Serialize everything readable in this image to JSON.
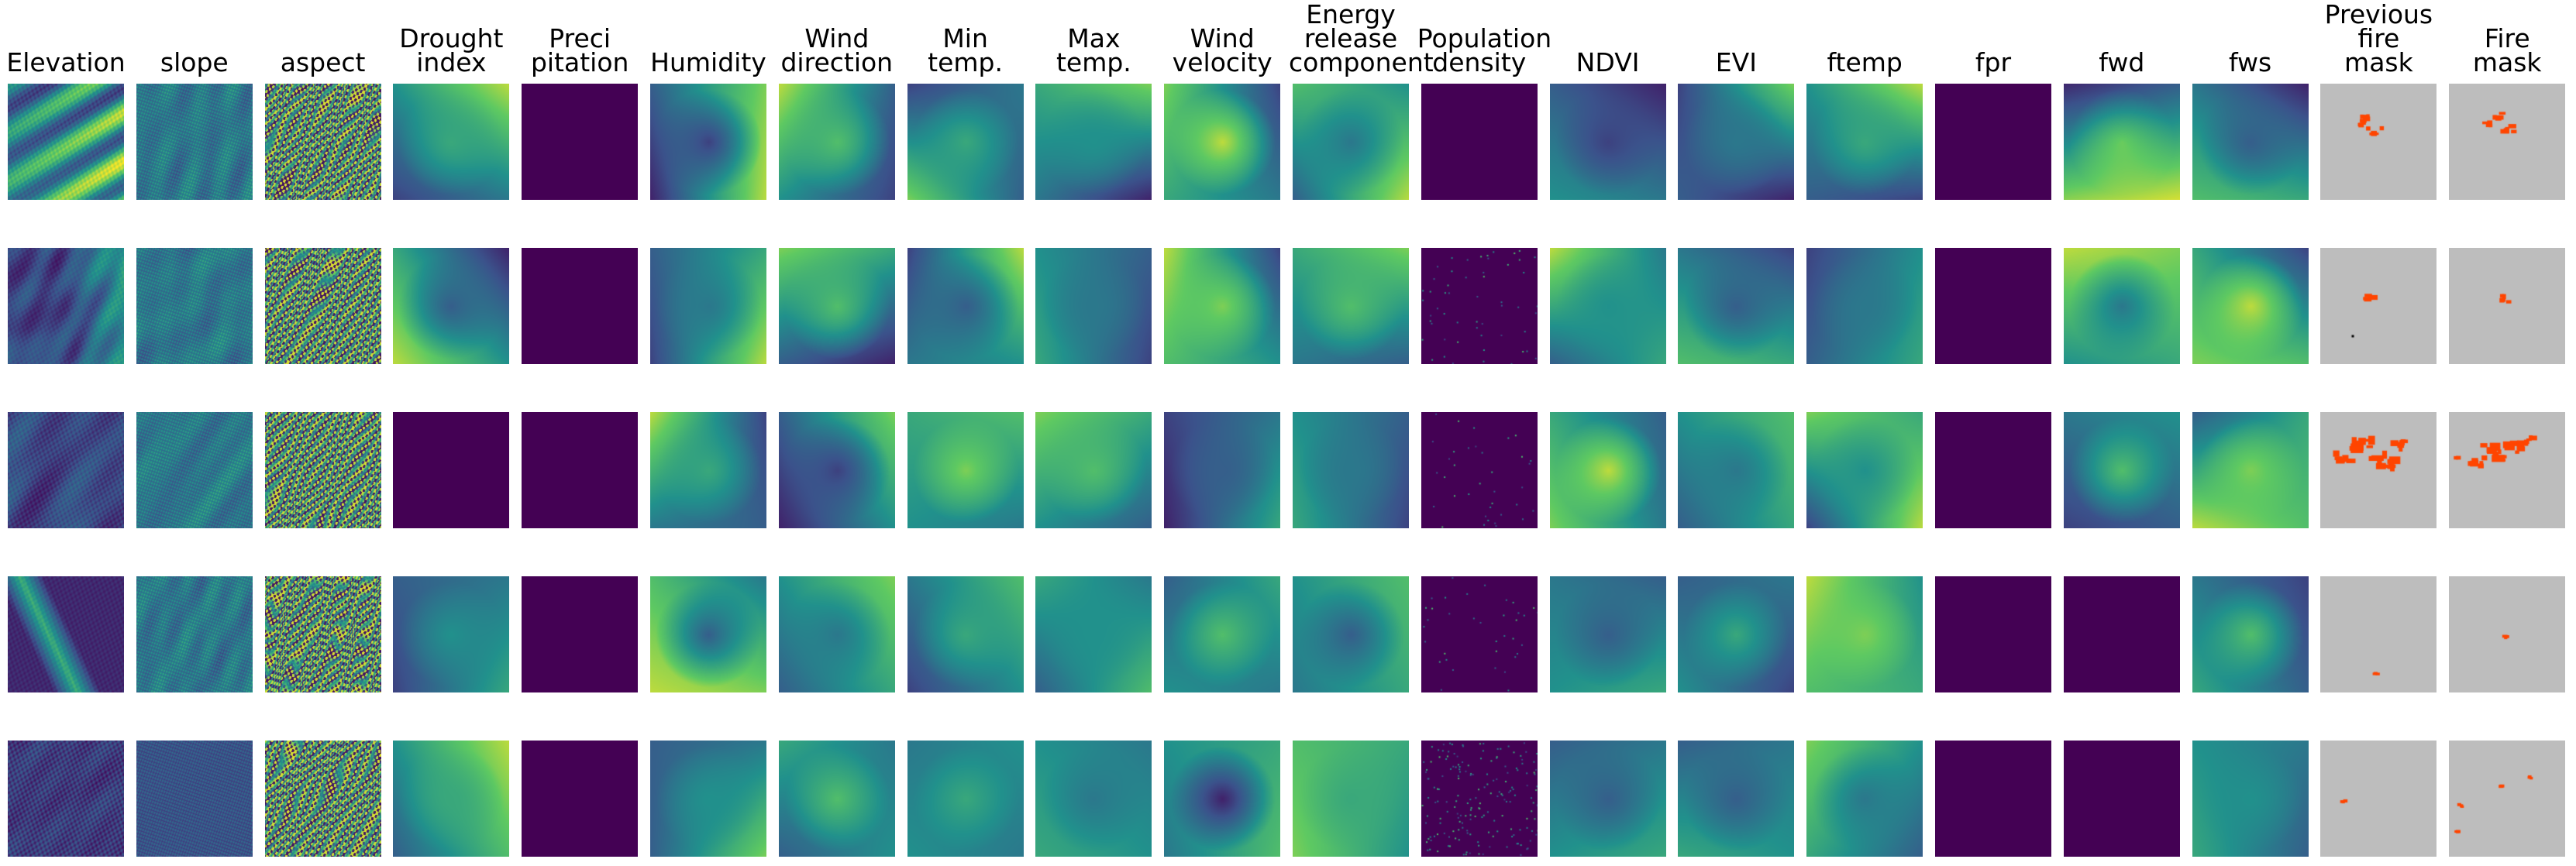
{
  "columns": [
    {
      "key": "elevation",
      "label": [
        "Elevation"
      ]
    },
    {
      "key": "slope",
      "label": [
        "slope"
      ]
    },
    {
      "key": "aspect",
      "label": [
        "aspect"
      ]
    },
    {
      "key": "drought",
      "label": [
        "Drought",
        "index"
      ]
    },
    {
      "key": "precip",
      "label": [
        "Preci",
        "pitation"
      ]
    },
    {
      "key": "humidity",
      "label": [
        "Humidity"
      ]
    },
    {
      "key": "winddir",
      "label": [
        "Wind",
        "direction"
      ]
    },
    {
      "key": "mintemp",
      "label": [
        "Min",
        "temp."
      ]
    },
    {
      "key": "maxtemp",
      "label": [
        "Max",
        "temp."
      ]
    },
    {
      "key": "windvel",
      "label": [
        "Wind",
        "velocity"
      ]
    },
    {
      "key": "erc",
      "label": [
        "Energy",
        "release",
        "component"
      ]
    },
    {
      "key": "popdens",
      "label": [
        "Population",
        "density"
      ]
    },
    {
      "key": "ndvi",
      "label": [
        "NDVI"
      ]
    },
    {
      "key": "evi",
      "label": [
        "EVI"
      ]
    },
    {
      "key": "ftemp",
      "label": [
        "ftemp"
      ]
    },
    {
      "key": "fpr",
      "label": [
        "fpr"
      ]
    },
    {
      "key": "fwd",
      "label": [
        "fwd"
      ]
    },
    {
      "key": "fws",
      "label": [
        "fws"
      ]
    },
    {
      "key": "prevfire",
      "label": [
        "Previous",
        "fire",
        "mask"
      ]
    },
    {
      "key": "firemask",
      "label": [
        "Fire",
        "mask"
      ]
    }
  ],
  "colormap": [
    "#440154",
    "#3b528b",
    "#21918c",
    "#5ec962",
    "#fde725"
  ],
  "mask_colors": {
    "background": "#bdbdbd",
    "fire": "#ff4500",
    "missing": "#000000"
  },
  "rows": [
    {
      "elevation": "ridged-bright",
      "slope": "texture",
      "aspect": "texture-strong",
      "drought": {
        "type": "smooth",
        "v": [
          0.5,
          0.9,
          0.2,
          0.4,
          0.6
        ]
      },
      "precip": {
        "type": "flat",
        "v": 0
      },
      "humidity": {
        "type": "smooth",
        "v": [
          0.3,
          0.8,
          0.1,
          0.9,
          0.2
        ]
      },
      "winddir": {
        "type": "smooth",
        "v": [
          0.9,
          0.3,
          0.5,
          0.2,
          0.7
        ]
      },
      "mintemp": {
        "type": "smooth",
        "v": [
          0.2,
          0.4,
          0.8,
          0.3,
          0.6
        ]
      },
      "maxtemp": {
        "type": "smooth",
        "v": [
          0.6,
          0.8,
          0.4,
          0.1,
          0.5
        ]
      },
      "windvel": {
        "type": "smooth",
        "v": [
          0.8,
          0.2,
          0.6,
          0.4,
          0.9
        ]
      },
      "erc": {
        "type": "smooth",
        "v": [
          0.7,
          0.5,
          0.3,
          0.9,
          0.4
        ]
      },
      "popdens": {
        "type": "flat",
        "v": 0
      },
      "ndvi": {
        "type": "smooth",
        "v": [
          0.3,
          0.1,
          0.5,
          0.4,
          0.2
        ]
      },
      "evi": {
        "type": "smooth",
        "v": [
          0.2,
          0.8,
          0.3,
          0.1,
          0.4
        ]
      },
      "ftemp": {
        "type": "smooth",
        "v": [
          0.5,
          0.9,
          0.3,
          0.2,
          0.6
        ]
      },
      "fpr": {
        "type": "flat",
        "v": 0
      },
      "fwd": {
        "type": "bands",
        "v": [
          0.2,
          0.5,
          0.7,
          0.9,
          0.95
        ]
      },
      "fws": {
        "type": "smooth",
        "v": [
          0.4,
          0.1,
          0.7,
          0.6,
          0.3
        ]
      },
      "prevfire": {
        "type": "mask",
        "fire": [
          [
            0.4,
            0.3,
            0.06
          ],
          [
            0.47,
            0.42,
            0.08
          ],
          [
            0.36,
            0.34,
            0.05
          ]
        ],
        "missing": []
      },
      "firemask": {
        "type": "mask",
        "fire": [
          [
            0.42,
            0.28,
            0.06
          ],
          [
            0.52,
            0.4,
            0.07
          ],
          [
            0.34,
            0.36,
            0.05
          ]
        ],
        "missing": []
      }
    },
    {
      "elevation": "dark-bright-corner",
      "slope": "texture",
      "aspect": "texture-strong",
      "drought": {
        "type": "smooth",
        "v": [
          0.6,
          0.1,
          0.9,
          0.5,
          0.3
        ]
      },
      "precip": {
        "type": "flat",
        "v": 0
      },
      "humidity": {
        "type": "smooth",
        "v": [
          0.3,
          0.6,
          0.2,
          0.9,
          0.4
        ]
      },
      "winddir": {
        "type": "smooth",
        "v": [
          0.8,
          0.6,
          0.3,
          0.1,
          0.7
        ]
      },
      "mintemp": {
        "type": "smooth",
        "v": [
          0.2,
          0.9,
          0.4,
          0.5,
          0.3
        ]
      },
      "maxtemp": {
        "type": "smooth",
        "v": [
          0.5,
          0.3,
          0.6,
          0.2,
          0.4
        ]
      },
      "windvel": {
        "type": "smooth",
        "v": [
          0.9,
          0.2,
          0.7,
          0.5,
          0.8
        ]
      },
      "erc": {
        "type": "smooth",
        "v": [
          0.6,
          0.8,
          0.4,
          0.3,
          0.7
        ]
      },
      "popdens": {
        "type": "speckle",
        "v": 0.03
      },
      "ndvi": {
        "type": "smooth",
        "v": [
          0.9,
          0.4,
          0.3,
          0.6,
          0.5
        ]
      },
      "evi": {
        "type": "smooth",
        "v": [
          0.4,
          0.2,
          0.7,
          0.6,
          0.3
        ]
      },
      "ftemp": {
        "type": "smooth",
        "v": [
          0.2,
          0.5,
          0.3,
          0.6,
          0.4
        ]
      },
      "fpr": {
        "type": "flat",
        "v": 0
      },
      "fwd": {
        "type": "smooth",
        "v": [
          0.9,
          0.8,
          0.5,
          0.6,
          0.4
        ]
      },
      "fws": {
        "type": "smooth",
        "v": [
          0.6,
          0.2,
          0.8,
          0.7,
          0.9
        ]
      },
      "prevfire": {
        "type": "mask",
        "fire": [
          [
            0.42,
            0.42,
            0.06
          ]
        ],
        "missing": [
          [
            0.27,
            0.75,
            0.02
          ]
        ]
      },
      "firemask": {
        "type": "mask",
        "fire": [
          [
            0.48,
            0.44,
            0.06
          ]
        ],
        "missing": []
      }
    },
    {
      "elevation": "dark-mottled",
      "slope": "texture",
      "aspect": "texture-strong",
      "drought": {
        "type": "flat",
        "v": 0
      },
      "precip": {
        "type": "flat",
        "v": 0
      },
      "humidity": {
        "type": "smooth",
        "v": [
          0.9,
          0.2,
          0.4,
          0.3,
          0.6
        ]
      },
      "winddir": {
        "type": "smooth",
        "v": [
          0.3,
          0.8,
          0.1,
          0.5,
          0.2
        ]
      },
      "mintemp": {
        "type": "smooth",
        "v": [
          0.6,
          0.7,
          0.5,
          0.4,
          0.8
        ]
      },
      "maxtemp": {
        "type": "smooth",
        "v": [
          0.8,
          0.6,
          0.5,
          0.3,
          0.7
        ]
      },
      "windvel": {
        "type": "smooth",
        "v": [
          0.2,
          0.4,
          0.1,
          0.6,
          0.3
        ]
      },
      "erc": {
        "type": "smooth",
        "v": [
          0.5,
          0.3,
          0.6,
          0.2,
          0.4
        ]
      },
      "popdens": {
        "type": "speckle",
        "v": 0.02
      },
      "ndvi": {
        "type": "smooth",
        "v": [
          0.6,
          0.3,
          0.8,
          0.4,
          0.9
        ]
      },
      "evi": {
        "type": "smooth",
        "v": [
          0.5,
          0.7,
          0.3,
          0.6,
          0.4
        ]
      },
      "ftemp": {
        "type": "smooth",
        "v": [
          0.8,
          0.6,
          0.2,
          0.9,
          0.5
        ]
      },
      "fpr": {
        "type": "flat",
        "v": 0
      },
      "fwd": {
        "type": "smooth",
        "v": [
          0.4,
          0.5,
          0.2,
          0.3,
          0.7
        ]
      },
      "fws": {
        "type": "smooth",
        "v": [
          0.3,
          0.6,
          0.9,
          0.7,
          0.8
        ]
      },
      "prevfire": {
        "type": "mask",
        "fire": [
          [
            0.38,
            0.32,
            0.16
          ],
          [
            0.55,
            0.42,
            0.12
          ],
          [
            0.2,
            0.4,
            0.1
          ],
          [
            0.66,
            0.28,
            0.08
          ]
        ],
        "missing": []
      },
      "firemask": {
        "type": "mask",
        "fire": [
          [
            0.4,
            0.35,
            0.14
          ],
          [
            0.58,
            0.3,
            0.1
          ],
          [
            0.25,
            0.45,
            0.08
          ],
          [
            0.7,
            0.24,
            0.06
          ],
          [
            0.08,
            0.38,
            0.04
          ]
        ],
        "missing": []
      }
    },
    {
      "elevation": "dark-streak",
      "slope": "texture",
      "aspect": "texture-strong",
      "drought": {
        "type": "smooth",
        "v": [
          0.3,
          0.4,
          0.2,
          0.6,
          0.5
        ]
      },
      "precip": {
        "type": "flat",
        "v": 0
      },
      "humidity": {
        "type": "smooth",
        "v": [
          0.7,
          0.4,
          0.9,
          0.8,
          0.3
        ]
      },
      "winddir": {
        "type": "smooth",
        "v": [
          0.5,
          0.8,
          0.3,
          0.6,
          0.4
        ]
      },
      "mintemp": {
        "type": "smooth",
        "v": [
          0.4,
          0.7,
          0.2,
          0.5,
          0.6
        ]
      },
      "maxtemp": {
        "type": "smooth",
        "v": [
          0.6,
          0.4,
          0.3,
          0.7,
          0.5
        ]
      },
      "windvel": {
        "type": "smooth",
        "v": [
          0.3,
          0.6,
          0.5,
          0.4,
          0.7
        ]
      },
      "erc": {
        "type": "smooth",
        "v": [
          0.5,
          0.7,
          0.4,
          0.6,
          0.3
        ]
      },
      "popdens": {
        "type": "speckle",
        "v": 0.02
      },
      "ndvi": {
        "type": "smooth",
        "v": [
          0.4,
          0.3,
          0.5,
          0.6,
          0.3
        ]
      },
      "evi": {
        "type": "smooth",
        "v": [
          0.3,
          0.4,
          0.5,
          0.2,
          0.6
        ]
      },
      "ftemp": {
        "type": "smooth",
        "v": [
          0.9,
          0.5,
          0.7,
          0.6,
          0.8
        ]
      },
      "fpr": {
        "type": "flat",
        "v": 0
      },
      "fwd": {
        "type": "flat",
        "v": 0
      },
      "fws": {
        "type": "smooth",
        "v": [
          0.4,
          0.2,
          0.6,
          0.3,
          0.7
        ]
      },
      "prevfire": {
        "type": "mask",
        "fire": [
          [
            0.48,
            0.84,
            0.02
          ]
        ],
        "missing": []
      },
      "firemask": {
        "type": "mask",
        "fire": [
          [
            0.5,
            0.52,
            0.03
          ]
        ],
        "missing": []
      }
    },
    {
      "elevation": "dark-texture",
      "slope": "texture-dark",
      "aspect": "texture-strong",
      "drought": {
        "type": "smooth",
        "v": [
          0.5,
          0.9,
          0.3,
          0.7,
          0.6
        ]
      },
      "precip": {
        "type": "flat",
        "v": 0
      },
      "humidity": {
        "type": "smooth",
        "v": [
          0.3,
          0.4,
          0.3,
          0.8,
          0.5
        ]
      },
      "winddir": {
        "type": "smooth",
        "v": [
          0.6,
          0.4,
          0.3,
          0.5,
          0.7
        ]
      },
      "mintemp": {
        "type": "smooth",
        "v": [
          0.4,
          0.5,
          0.5,
          0.4,
          0.6
        ]
      },
      "maxtemp": {
        "type": "smooth",
        "v": [
          0.5,
          0.4,
          0.6,
          0.5,
          0.4
        ]
      },
      "windvel": {
        "type": "smooth",
        "v": [
          0.5,
          0.6,
          0.4,
          0.7,
          0.1
        ]
      },
      "erc": {
        "type": "smooth",
        "v": [
          0.7,
          0.6,
          0.8,
          0.5,
          0.6
        ]
      },
      "popdens": {
        "type": "speckle",
        "v": 0.1
      },
      "ndvi": {
        "type": "smooth",
        "v": [
          0.3,
          0.4,
          0.5,
          0.6,
          0.3
        ]
      },
      "evi": {
        "type": "smooth",
        "v": [
          0.3,
          0.4,
          0.6,
          0.5,
          0.3
        ]
      },
      "ftemp": {
        "type": "smooth",
        "v": [
          0.8,
          0.5,
          0.6,
          0.3,
          0.4
        ]
      },
      "fpr": {
        "type": "flat",
        "v": 0
      },
      "fwd": {
        "type": "flat",
        "v": 0
      },
      "fws": {
        "type": "smooth",
        "v": [
          0.5,
          0.4,
          0.6,
          0.3,
          0.5
        ]
      },
      "prevfire": {
        "type": "mask",
        "fire": [
          [
            0.2,
            0.52,
            0.02
          ]
        ],
        "missing": []
      },
      "firemask": {
        "type": "mask",
        "fire": [
          [
            0.1,
            0.56,
            0.02
          ],
          [
            0.45,
            0.4,
            0.02
          ],
          [
            0.7,
            0.32,
            0.02
          ],
          [
            0.08,
            0.78,
            0.02
          ]
        ],
        "missing": []
      }
    }
  ]
}
